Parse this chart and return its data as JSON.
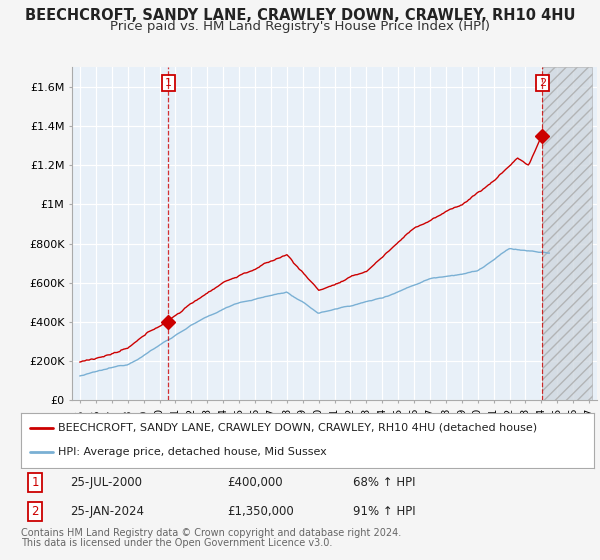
{
  "title": "BEECHCROFT, SANDY LANE, CRAWLEY DOWN, CRAWLEY, RH10 4HU",
  "subtitle": "Price paid vs. HM Land Registry's House Price Index (HPI)",
  "ylim": [
    0,
    1700000
  ],
  "yticks": [
    0,
    200000,
    400000,
    600000,
    800000,
    1000000,
    1200000,
    1400000,
    1600000
  ],
  "ytick_labels": [
    "£0",
    "£200K",
    "£400K",
    "£600K",
    "£800K",
    "£1M",
    "£1.2M",
    "£1.4M",
    "£1.6M"
  ],
  "title_fontsize": 10.5,
  "subtitle_fontsize": 9.5,
  "bg_color": "#f5f5f5",
  "plot_bg_color": "#e8f0f8",
  "grid_color": "#ffffff",
  "red_line_color": "#cc0000",
  "blue_line_color": "#7ab0d4",
  "sale1_date_num": 2000.56,
  "sale1_price": 400000,
  "sale2_date_num": 2024.07,
  "sale2_price": 1350000,
  "legend1": "BEECHCROFT, SANDY LANE, CRAWLEY DOWN, CRAWLEY, RH10 4HU (detached house)",
  "legend2": "HPI: Average price, detached house, Mid Sussex",
  "footnote1": "Contains HM Land Registry data © Crown copyright and database right 2024.",
  "footnote2": "This data is licensed under the Open Government Licence v3.0.",
  "hatch_start": 2024.07,
  "hatch_end": 2027.2,
  "xmin": 1994.5,
  "xmax": 2027.5,
  "xticks": [
    1995,
    1996,
    1997,
    1998,
    1999,
    2000,
    2001,
    2002,
    2003,
    2004,
    2005,
    2006,
    2007,
    2008,
    2009,
    2010,
    2011,
    2012,
    2013,
    2014,
    2015,
    2016,
    2017,
    2018,
    2019,
    2020,
    2021,
    2022,
    2023,
    2024,
    2025,
    2026,
    2027
  ]
}
